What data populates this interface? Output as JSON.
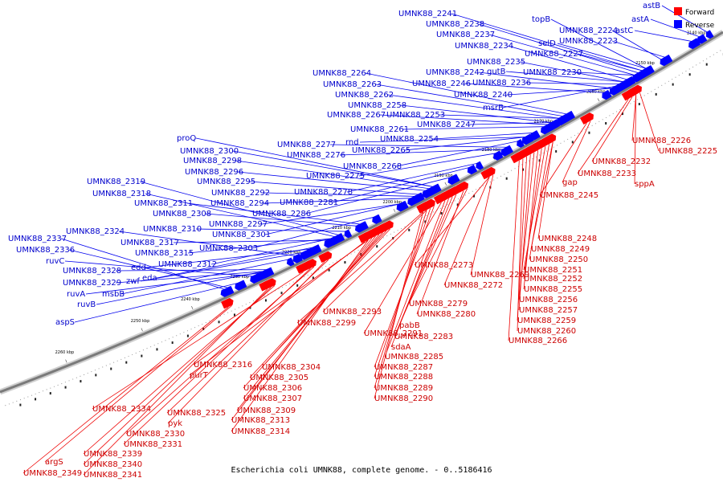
{
  "caption": "Escherichia coli UMNK88, complete genome. - 0..5186416",
  "legend": [
    {
      "label": "Forward",
      "color": "#ff0000"
    },
    {
      "label": "Reverse",
      "color": "#0000ff"
    }
  ],
  "colors": {
    "forward": "#ff0000",
    "reverse": "#0000ff",
    "forward_label": "#cc0000",
    "reverse_label": "#0000cc",
    "backbone": "#888888"
  },
  "ticks": [
    "2140 kbp",
    "2150 kbp",
    "2160 kbp",
    "2170 kbp",
    "2180 kbp",
    "2190 kbp",
    "2200 kbp",
    "2210 kbp",
    "2220 kbp",
    "2230 kbp",
    "2240 kbp",
    "2250 kbp",
    "2260 kbp"
  ],
  "reverse_labels": [
    "astB",
    "astA",
    "astC",
    "UMNK88_2241",
    "UMNK88_2238",
    "topB",
    "UMNK88_2224",
    "UMNK88_2237",
    "UMNK88_2234",
    "selD",
    "UMNK88_2223",
    "UMNK88_2227",
    "UMNK88_2235",
    "UMNK88_2242",
    "gutB",
    "UMNK88_2230",
    "UMNK88_2246",
    "UMNK88_2236",
    "UMNK88_2240",
    "msrB",
    "UMNK88_2264",
    "UMNK88_2263",
    "UMNK88_2262",
    "UMNK88_2258",
    "UMNK88_2267",
    "UMNK88_2253",
    "UMNK88_2261",
    "UMNK88_2247",
    "UMNK88_2254",
    "rnd",
    "UMNK88_2277",
    "UMNK88_2276",
    "UMNK88_2265",
    "UMNK88_2268",
    "UMNK88_2275",
    "proQ",
    "UMNK88_2300",
    "UMNK88_2298",
    "UMNK88_2296",
    "UMNK88_2295",
    "UMNK88_2292",
    "UMNK88_2294",
    "UMNK88_2278",
    "UMNK88_2281",
    "UMNK88_2286",
    "UMNK88_2319",
    "UMNK88_2318",
    "UMNK88_2311",
    "UMNK88_2308",
    "UMNK88_2297",
    "UMNK88_2301",
    "UMNK88_2310",
    "UMNK88_2324",
    "UMNK88_2317",
    "UMNK88_2315",
    "UMNK88_2303",
    "UMNK88_2337",
    "UMNK88_2336",
    "ruvC",
    "edd",
    "UMNK88_2312",
    "UMNK88_2328",
    "eda",
    "UMNK88_2329",
    "zwf",
    "ruvA",
    "msbB",
    "ruvB",
    "aspS"
  ],
  "forward_labels": [
    "UMNK88_2226",
    "UMNK88_2225",
    "UMNK88_2232",
    "UMNK88_2233",
    "sppA",
    "gap",
    "UMNK88_2245",
    "UMNK88_2248",
    "UMNK88_2249",
    "UMNK88_2250",
    "UMNK88_2251",
    "UMNK88_2252",
    "UMNK88_2255",
    "UMNK88_2256",
    "UMNK88_2257",
    "UMNK88_2259",
    "UMNK88_2260",
    "UMNK88_2266",
    "UMNK88_2273",
    "UMNK88_2269",
    "UMNK88_2272",
    "UMNK88_2279",
    "UMNK88_2280",
    "UMNK88_2293",
    "UMNK88_2299",
    "UMNK88_2291",
    "pabB",
    "UMNK88_2283",
    "sdaA",
    "UMNK88_2285",
    "UMNK88_2287",
    "UMNK88_2288",
    "UMNK88_2289",
    "UMNK88_2290",
    "UMNK88_2316",
    "UMNK88_2304",
    "purT",
    "UMNK88_2305",
    "UMNK88_2306",
    "UMNK88_2307",
    "UMNK88_2309",
    "UMNK88_2313",
    "UMNK88_2314",
    "UMNK88_2334",
    "UMNK88_2325",
    "pyk",
    "UMNK88_2330",
    "UMNK88_2331",
    "UMNK88_2339",
    "UMNK88_2340",
    "UMNK88_2341",
    "argS",
    "UMNK88_2349"
  ]
}
